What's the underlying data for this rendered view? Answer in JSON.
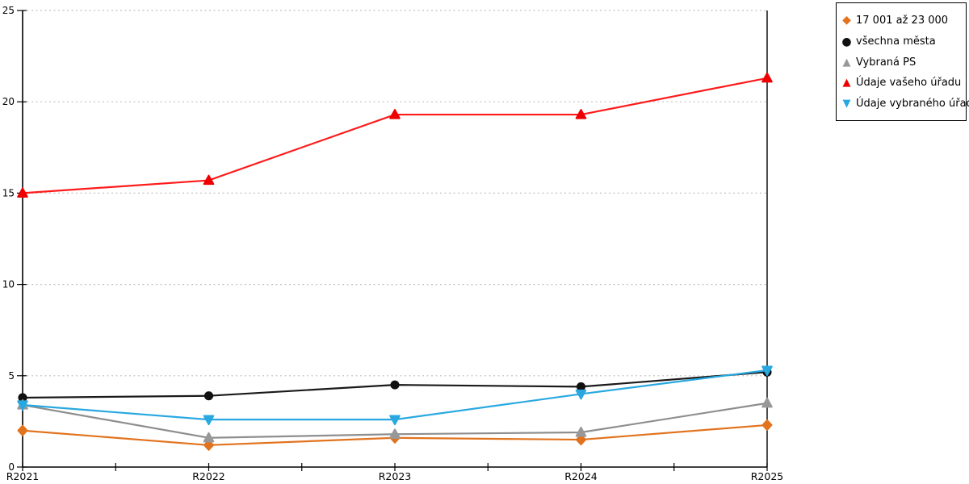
{
  "chart_data": {
    "type": "line",
    "title": "",
    "xlabel": "",
    "ylabel": "",
    "categories": [
      "R2021",
      "R2022",
      "R2023",
      "R2024",
      "R2025"
    ],
    "series": [
      {
        "name": "17 001 až 23 000",
        "marker": "diamond",
        "color": "#E2731E",
        "line_color": "#E2731E",
        "values": [
          2.0,
          1.2,
          1.6,
          1.5,
          2.3
        ]
      },
      {
        "name": "všechna města",
        "marker": "circle",
        "color": "#111111",
        "line_color": "#1A1A1A",
        "values": [
          3.8,
          3.9,
          4.5,
          4.4,
          5.2
        ]
      },
      {
        "name": "Vybraná PS",
        "marker": "triangle-up",
        "color": "#989898",
        "line_color": "#8E8E8E",
        "values": [
          3.4,
          1.6,
          1.8,
          1.9,
          3.5
        ]
      },
      {
        "name": "Údaje vašeho úřadu",
        "marker": "triangle-up",
        "color": "#EE0000",
        "line_color": "#FF1A1A",
        "values": [
          15.0,
          15.7,
          19.3,
          19.3,
          21.3
        ]
      },
      {
        "name": "Údaje vybraného úřadu",
        "marker": "triangle-down",
        "color": "#29A8E0",
        "line_color": "#29A8E0",
        "values": [
          3.4,
          2.6,
          2.6,
          4.0,
          5.3
        ]
      }
    ],
    "ylim": [
      0,
      25
    ],
    "yticks": [
      0,
      5,
      10,
      15,
      20,
      25
    ],
    "x_minor_ticks": true,
    "grid": "horizontal-dotted",
    "legend_position": "outside-top-right",
    "colors": {
      "axis": "#000000",
      "grid": "#C0C0C0",
      "background": "#FFFFFF"
    }
  }
}
